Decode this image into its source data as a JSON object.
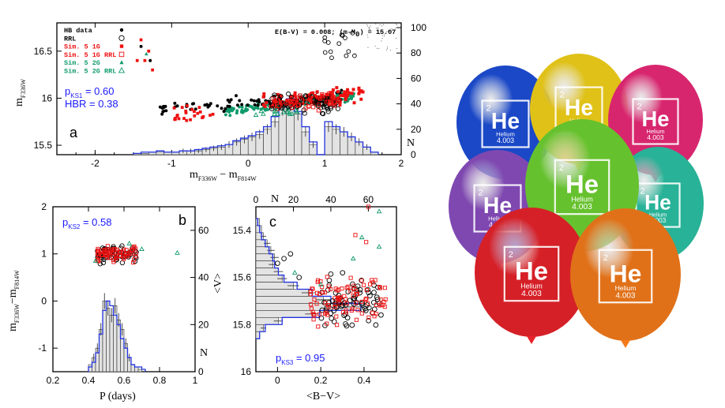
{
  "panel_a": {
    "letter": "a",
    "ebv_text": "E(B-V) = 0.008; (m-M",
    "ebv_sub": "0",
    "ebv_tail": ") = 15.07",
    "pks_label": "p",
    "pks_sub": "KS1",
    "pks_value": " = 0.60",
    "hbr_text": "HBR = 0.38",
    "xlabel_main": "m",
    "xlabel_sub1": "F336W",
    "xlabel_mid": " − m",
    "xlabel_sub2": "F814W",
    "ylabel_main": "m",
    "ylabel_sub": "F336W",
    "n_label": "N",
    "legend": [
      {
        "label": "HB data",
        "color": "#000000",
        "marker": "filled-circle"
      },
      {
        "label": "RRL",
        "color": "#000000",
        "marker": "open-circle"
      },
      {
        "label": "Sim. 5 1G",
        "color": "#ee1111",
        "marker": "filled-square"
      },
      {
        "label": "Sim. 5 1G RRL",
        "color": "#ee1111",
        "marker": "open-square"
      },
      {
        "label": "Sim. 5 2G",
        "color": "#0f9a6a",
        "marker": "filled-triangle"
      },
      {
        "label": "Sim. 5 2G RRL",
        "color": "#0f9a6a",
        "marker": "open-triangle"
      }
    ]
  },
  "panel_b": {
    "letter": "b",
    "pks_label": "p",
    "pks_sub": "KS2",
    "pks_value": " = 0.58",
    "xlabel": "P (days)",
    "ylabel_main": "m",
    "ylabel_sub1": "F336W",
    "ylabel_mid": "−m",
    "ylabel_sub2": "F814W",
    "n_label": "N"
  },
  "panel_c": {
    "letter": "c",
    "pks_label": "p",
    "pks_sub": "KS3",
    "pks_value": " = 0.95",
    "xlabel": "<B−V>",
    "ylabel": "<V>",
    "n_label": "N"
  },
  "balloons": {
    "symbol": "He",
    "number": "2",
    "name": "Helium",
    "mass": "4.003",
    "colors": [
      "#1e4fd8",
      "#f3d21a",
      "#ea2a78",
      "#8a4fc0",
      "#2cc2a4",
      "#6fd232",
      "#e8232b",
      "#f47b1c"
    ]
  },
  "chart_data": [
    {
      "type": "scatter",
      "panel": "a",
      "xlim": [
        -2.5,
        2.0
      ],
      "ylim": [
        16.8,
        15.4
      ],
      "x_ticks": [
        "-2",
        "-1",
        "0",
        "1",
        "2"
      ],
      "y_ticks": [
        "15.5",
        "16",
        "16.5"
      ],
      "right_axis_ticks": [
        "0",
        "20",
        "40",
        "60",
        "80",
        "100"
      ],
      "histogram_bins": [
        -1.5,
        -1.4,
        -1.3,
        -1.2,
        -1.1,
        -1.0,
        -0.9,
        -0.8,
        -0.7,
        -0.6,
        -0.5,
        -0.4,
        -0.3,
        -0.2,
        -0.1,
        0.0,
        0.1,
        0.2,
        0.3,
        0.4,
        0.5,
        0.6,
        0.7,
        0.8,
        0.9,
        1.0,
        1.1,
        1.2,
        1.3,
        1.4,
        1.5,
        1.6
      ],
      "histogram_data": [
        1,
        1,
        2,
        2,
        2,
        2,
        3,
        3,
        3,
        4,
        5,
        6,
        8,
        10,
        12,
        14,
        16,
        20,
        26,
        36,
        40,
        32,
        18,
        8,
        0,
        22,
        20,
        18,
        14,
        10,
        6,
        2
      ],
      "histogram_sim": [
        1,
        2,
        2,
        3,
        2,
        2,
        3,
        3,
        4,
        5,
        6,
        7,
        8,
        11,
        13,
        15,
        18,
        22,
        30,
        42,
        44,
        34,
        22,
        10,
        0,
        26,
        22,
        18,
        14,
        10,
        6,
        2
      ]
    },
    {
      "type": "scatter",
      "panel": "b",
      "xlim": [
        0.2,
        1.0
      ],
      "ylim": [
        -1.5,
        2.0
      ],
      "x_ticks": [
        "0.2",
        "0.4",
        "0.6",
        "0.8",
        "1"
      ],
      "y_ticks": [
        "-1",
        "0",
        "1",
        "2"
      ],
      "right_axis_ticks": [
        "0",
        "20",
        "40",
        "60"
      ],
      "histogram_bins": [
        0.4,
        0.42,
        0.44,
        0.46,
        0.48,
        0.5,
        0.52,
        0.54,
        0.56,
        0.58,
        0.6,
        0.62,
        0.64,
        0.66,
        0.68,
        0.7
      ],
      "histogram_data": [
        3,
        6,
        10,
        18,
        30,
        27,
        24,
        28,
        22,
        18,
        12,
        6,
        3,
        2,
        1,
        0
      ],
      "histogram_sim": [
        2,
        4,
        8,
        16,
        26,
        30,
        28,
        24,
        20,
        14,
        10,
        6,
        3,
        2,
        2,
        1
      ]
    },
    {
      "type": "scatter",
      "panel": "c",
      "xlim": [
        -0.1,
        0.55
      ],
      "ylim": [
        16.0,
        15.3
      ],
      "x_ticks": [
        "0",
        "0.2",
        "0.4"
      ],
      "y_ticks": [
        "15.4",
        "15.6",
        "15.8",
        "16"
      ],
      "top_axis_ticks": [
        "0",
        "20",
        "40",
        "60"
      ]
    }
  ]
}
